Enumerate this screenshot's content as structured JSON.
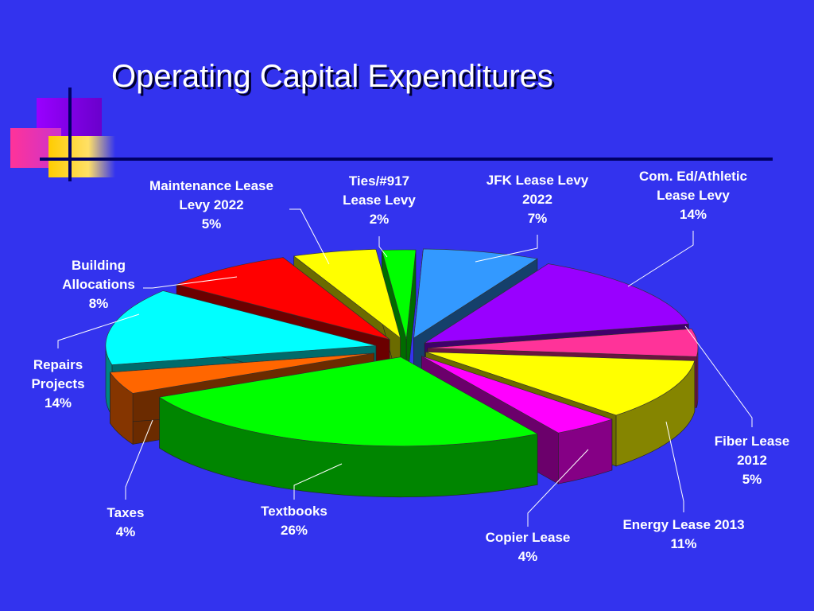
{
  "title": "Operating Capital Expenditures",
  "chart_data": {
    "type": "pie",
    "title": "Operating Capital Expenditures",
    "slices": [
      {
        "label": [
          "JFK Lease Levy",
          "2022",
          "7%"
        ],
        "name": "JFK Lease Levy 2022",
        "value": 7,
        "color": "#3399ff"
      },
      {
        "label": [
          "Com. Ed/Athletic",
          "Lease Levy",
          "14%"
        ],
        "name": "Com. Ed/Athletic Lease Levy",
        "value": 14,
        "color": "#9900ff"
      },
      {
        "label": [
          "Fiber Lease",
          "2012",
          "5%"
        ],
        "name": "Fiber Lease 2012",
        "value": 5,
        "color": "#ff3399"
      },
      {
        "label": [
          "Energy Lease 2013",
          "11%"
        ],
        "name": "Energy Lease 2013",
        "value": 11,
        "color": "#ffff00"
      },
      {
        "label": [
          "Copier Lease",
          "4%"
        ],
        "name": "Copier Lease",
        "value": 4,
        "color": "#ff00ff"
      },
      {
        "label": [
          "Textbooks",
          "26%"
        ],
        "name": "Textbooks",
        "value": 26,
        "color": "#00ff00"
      },
      {
        "label": [
          "Taxes",
          "4%"
        ],
        "name": "Taxes",
        "value": 4,
        "color": "#ff6600"
      },
      {
        "label": [
          "Repairs",
          "Projects",
          "14%"
        ],
        "name": "Repairs Projects",
        "value": 14,
        "color": "#00ffff"
      },
      {
        "label": [
          "Building",
          "Allocations",
          "8%"
        ],
        "name": "Building Allocations",
        "value": 8,
        "color": "#ff0000"
      },
      {
        "label": [
          "Maintenance Lease",
          "Levy 2022",
          "5%"
        ],
        "name": "Maintenance Lease Levy 2022",
        "value": 5,
        "color": "#ffff00"
      },
      {
        "label": [
          "Ties/#917",
          "Lease Levy",
          "2%"
        ],
        "name": "Ties/#917 Lease Levy",
        "value": 2,
        "color": "#00ff00"
      }
    ]
  }
}
